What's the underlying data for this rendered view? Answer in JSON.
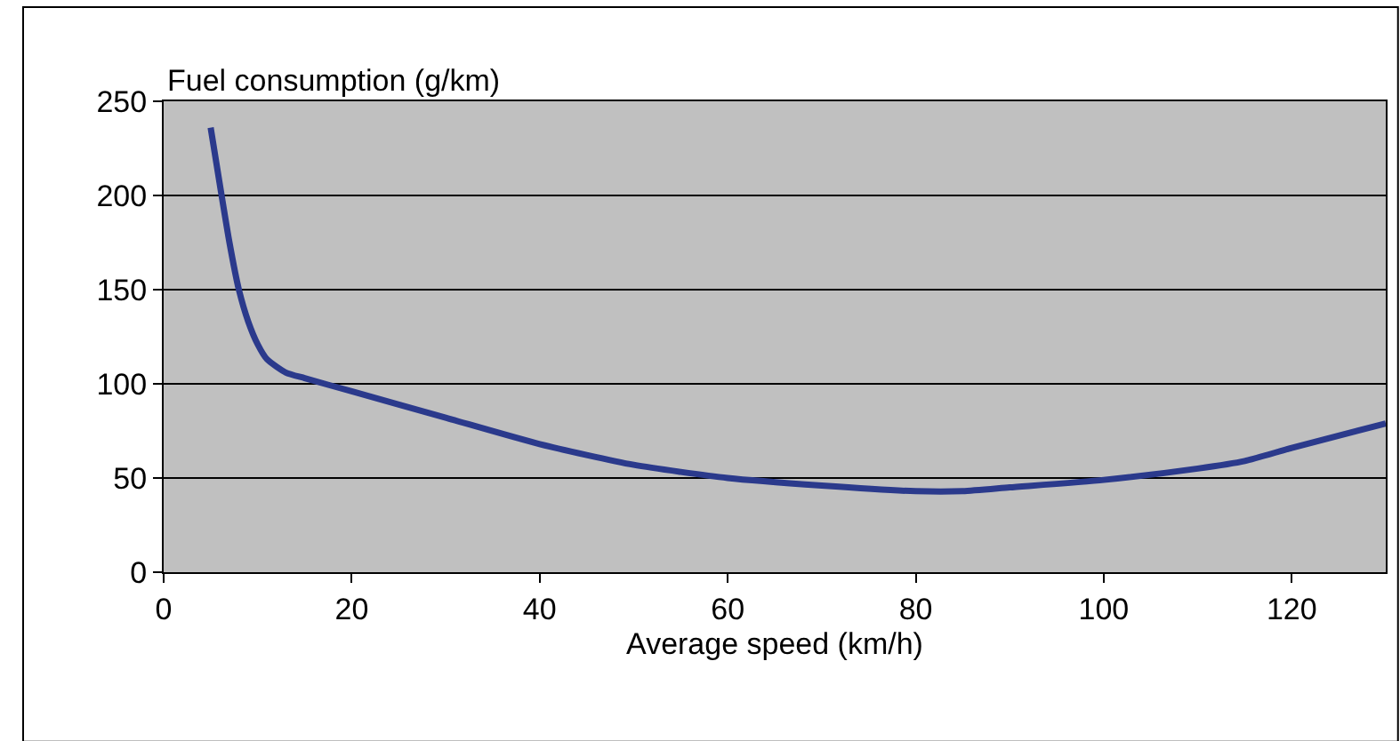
{
  "chart_data": {
    "type": "line",
    "xlabel": "Average speed (km/h)",
    "ylabel": "Fuel consumption (g/km)",
    "xlim": [
      0,
      130
    ],
    "xticks": [
      0,
      20,
      40,
      60,
      80,
      100,
      120
    ],
    "ylim": [
      0,
      250
    ],
    "yticks": [
      0,
      50,
      100,
      150,
      200,
      250
    ],
    "grid": "y",
    "marker": "none",
    "line_style": "solid",
    "series": [
      {
        "color": "#2b3a8c",
        "x": [
          5,
          6,
          7,
          8,
          9,
          10,
          11,
          13,
          15,
          20,
          30,
          40,
          50,
          60,
          70,
          80,
          85,
          90,
          100,
          110,
          115,
          120,
          130
        ],
        "values": [
          236,
          205,
          175,
          150,
          133,
          121,
          113,
          106,
          103,
          96,
          82,
          68,
          57,
          50,
          46,
          43,
          43,
          45,
          49,
          55,
          59,
          66,
          79
        ]
      }
    ]
  }
}
